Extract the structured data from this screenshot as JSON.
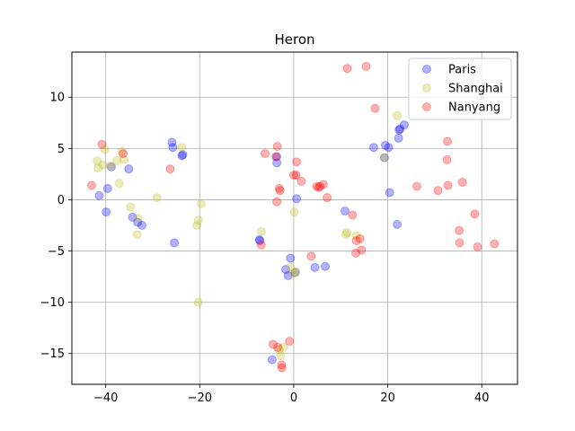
{
  "chart_data": {
    "type": "scatter",
    "title": "Heron",
    "xlabel": "",
    "ylabel": "",
    "xlim": [
      -47.2,
      47.6
    ],
    "ylim": [
      -18.0,
      14.4
    ],
    "xticks": [
      -40,
      -20,
      0,
      20,
      40
    ],
    "yticks": [
      -15,
      -10,
      -5,
      0,
      5,
      10
    ],
    "xtick_labels": [
      "−40",
      "−20",
      "0",
      "20",
      "40"
    ],
    "ytick_labels": [
      "−15",
      "−10",
      "−5",
      "0",
      "5",
      "10"
    ],
    "grid": true,
    "legend_position": "top-right",
    "series": [
      {
        "name": "Paris",
        "color": "#0000ff",
        "points": [
          [
            -41.4,
            0.4
          ],
          [
            -39.9,
            -1.2
          ],
          [
            -39.6,
            1.1
          ],
          [
            -38.8,
            3.2
          ],
          [
            -35.1,
            3.0
          ],
          [
            -34.3,
            -1.7
          ],
          [
            -33.2,
            -2.2
          ],
          [
            -32.3,
            -2.5
          ],
          [
            -25.9,
            5.6
          ],
          [
            -25.7,
            5.1
          ],
          [
            -25.4,
            -4.2
          ],
          [
            -23.8,
            4.3
          ],
          [
            -23.6,
            4.4
          ],
          [
            -7.3,
            -3.9
          ],
          [
            -7.2,
            -4.0
          ],
          [
            -3.6,
            4.2
          ],
          [
            -3.6,
            3.6
          ],
          [
            -4.6,
            -15.6
          ],
          [
            -1.7,
            -6.8
          ],
          [
            -1.2,
            -7.4
          ],
          [
            -0.7,
            -5.7
          ],
          [
            0.3,
            -7.1
          ],
          [
            0.6,
            0.1
          ],
          [
            4.5,
            -6.6
          ],
          [
            6.7,
            -6.5
          ],
          [
            10.9,
            -1.1
          ],
          [
            17.0,
            5.1
          ],
          [
            19.5,
            5.3
          ],
          [
            20.2,
            5.1
          ],
          [
            20.4,
            0.7
          ],
          [
            22.0,
            -2.4
          ],
          [
            22.3,
            6.0
          ],
          [
            22.4,
            6.8
          ],
          [
            22.6,
            6.9
          ],
          [
            23.5,
            7.3
          ],
          [
            19.3,
            4.1
          ]
        ]
      },
      {
        "name": "Shanghai",
        "color": "#bcbd22",
        "points": [
          [
            -41.8,
            3.8
          ],
          [
            -41.6,
            3.1
          ],
          [
            -40.6,
            3.4
          ],
          [
            -40.2,
            4.9
          ],
          [
            -39.0,
            3.3
          ],
          [
            -37.6,
            3.8
          ],
          [
            -37.1,
            1.6
          ],
          [
            -36.6,
            4.7
          ],
          [
            -36.1,
            3.9
          ],
          [
            -34.7,
            -0.7
          ],
          [
            -33.3,
            -3.4
          ],
          [
            -33.1,
            -1.8
          ],
          [
            -29.1,
            0.2
          ],
          [
            -23.8,
            5.1
          ],
          [
            -20.6,
            -2.5
          ],
          [
            -20.3,
            -2.0
          ],
          [
            -19.7,
            -0.4
          ],
          [
            -20.3,
            -10.0
          ],
          [
            -6.9,
            -3.1
          ],
          [
            -3.1,
            -14.6
          ],
          [
            -2.8,
            -15.2
          ],
          [
            -2.2,
            -14.4
          ],
          [
            -0.7,
            -6.6
          ],
          [
            -0.1,
            -7.2
          ],
          [
            0.1,
            -1.2
          ],
          [
            0.5,
            -7.0
          ],
          [
            11.1,
            -3.4
          ],
          [
            11.3,
            -3.2
          ],
          [
            13.3,
            -3.5
          ],
          [
            22.0,
            8.2
          ],
          [
            19.2,
            4.1
          ]
        ]
      },
      {
        "name": "Nanyang",
        "color": "#ff0000",
        "points": [
          [
            -43.0,
            1.4
          ],
          [
            -40.8,
            5.4
          ],
          [
            -36.3,
            4.5
          ],
          [
            -26.3,
            3.0
          ],
          [
            -6.9,
            -4.4
          ],
          [
            -6.1,
            4.5
          ],
          [
            -4.4,
            -14.1
          ],
          [
            -3.8,
            4.2
          ],
          [
            -3.6,
            -0.2
          ],
          [
            -3.5,
            5.2
          ],
          [
            -3.4,
            -14.4
          ],
          [
            -3.1,
            1.1
          ],
          [
            -2.9,
            0.9
          ],
          [
            -2.6,
            -16.1
          ],
          [
            -2.5,
            -16.4
          ],
          [
            -0.9,
            -13.8
          ],
          [
            0.0,
            2.4
          ],
          [
            0.5,
            2.4
          ],
          [
            0.6,
            3.7
          ],
          [
            1.6,
            1.8
          ],
          [
            3.7,
            -5.5
          ],
          [
            4.9,
            1.3
          ],
          [
            5.3,
            1.2
          ],
          [
            5.6,
            1.3
          ],
          [
            6.3,
            1.5
          ],
          [
            7.1,
            0.2
          ],
          [
            11.4,
            12.8
          ],
          [
            12.5,
            -1.5
          ],
          [
            13.2,
            -5.2
          ],
          [
            13.3,
            -4.0
          ],
          [
            14.1,
            -3.8
          ],
          [
            14.4,
            -4.9
          ],
          [
            15.4,
            13.0
          ],
          [
            17.3,
            8.9
          ],
          [
            26.2,
            1.3
          ],
          [
            30.7,
            0.9
          ],
          [
            32.6,
            3.9
          ],
          [
            32.7,
            5.7
          ],
          [
            32.8,
            1.4
          ],
          [
            35.2,
            -3.0
          ],
          [
            35.3,
            -4.2
          ],
          [
            35.9,
            1.7
          ],
          [
            38.5,
            -1.4
          ],
          [
            39.1,
            -4.6
          ],
          [
            42.7,
            -4.3
          ]
        ]
      }
    ]
  }
}
